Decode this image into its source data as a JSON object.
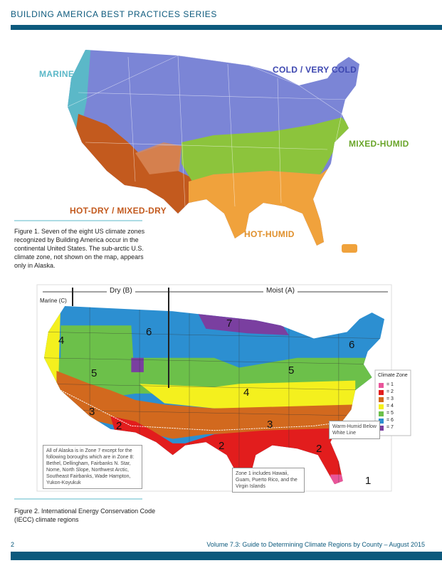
{
  "header": {
    "series": "BUILDING AMERICA BEST PRACTICES SERIES"
  },
  "figure1": {
    "labels": {
      "marine": "MARINE",
      "cold": "COLD / VERY COLD",
      "mixed_humid": "MIXED-HUMID",
      "hot_dry": "HOT-DRY / MIXED-DRY",
      "hot_humid": "HOT-HUMID"
    },
    "caption": "Figure 1. Seven of the eight US climate zones recognized by Building America occur in the continental United States. The sub-arctic U.S. climate zone, not shown on the map, appears only in Alaska."
  },
  "figure2": {
    "regions": {
      "dry": "Dry (B)",
      "moist": "Moist (A)",
      "marine": "Marine (C)"
    },
    "zone_labels": [
      "7",
      "6",
      "6",
      "4",
      "5",
      "5",
      "4",
      "3",
      "3",
      "2",
      "2",
      "2",
      "1"
    ],
    "legend": {
      "title": "Climate Zone",
      "items": [
        "= 1",
        "= 2",
        "= 3",
        "= 4",
        "= 5",
        "= 6",
        "= 7"
      ]
    },
    "warm_humid_note": "Warm-Humid Below White Line",
    "alaska_note": "All of Alaska is in Zone 7 except for the following boroughs which are in Zone 8: Bethel, Dellingham, Fairbanks N. Star, Nome, North Slope, Northwest Arctic, Southeast Fairbanks, Wade Hampton, Yukon-Koyukuk",
    "zone1_note": "Zone 1 includes Hawaii, Guam, Puerto Rico, and the Virgin Islands",
    "caption": "Figure 2. International Energy Conservation Code (IECC) climate regions"
  },
  "footer": {
    "page": "2",
    "title": "Volume 7.3: Guide to Determining Climate Regions by County – August 2015"
  }
}
